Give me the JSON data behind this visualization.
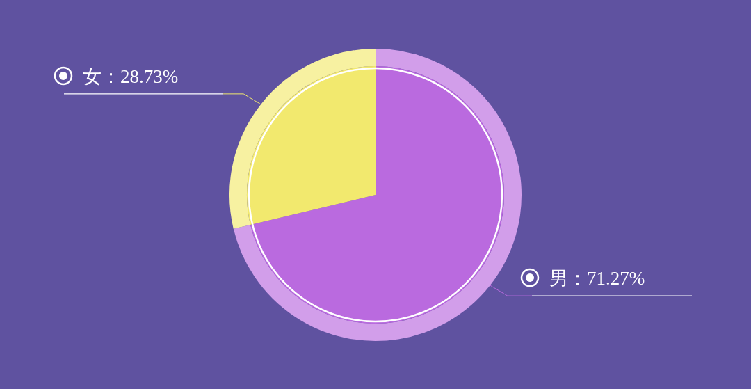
{
  "chart_data": {
    "type": "pie",
    "categories": [
      "男",
      "女"
    ],
    "values": [
      71.27,
      28.73
    ],
    "colors": [
      "#ba6adf",
      "#f2e96e"
    ],
    "value_labels": [
      "71.27%",
      "28.73%"
    ]
  }
}
